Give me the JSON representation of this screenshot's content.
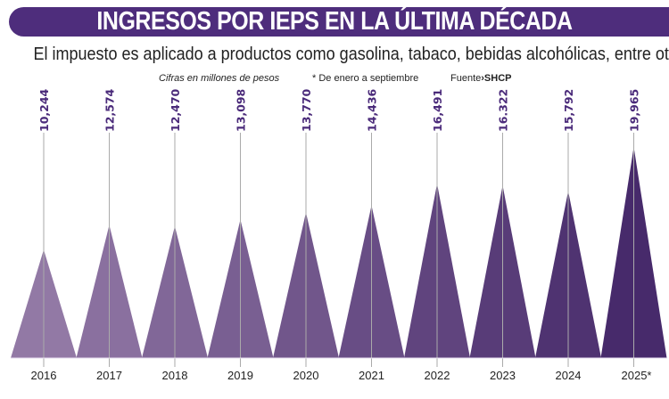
{
  "header": {
    "title": "INGRESOS POR IEPS EN LA ÚLTIMA DÉCADA",
    "subtitle": "El impuesto es aplicado a productos como gasolina, tabaco, bebidas alcohólicas, entre otros."
  },
  "notes": {
    "units": "Cifras en millones de pesos",
    "partial_year": "* De enero a septiembre",
    "source_label": "Fuente",
    "source_arrow": "›",
    "source": "SHCP"
  },
  "colors": {
    "banner": "#4e2d7c",
    "value_label": "#4a2a7a",
    "triangle_light": "#9279a5",
    "triangle_dark": "#472a6b"
  },
  "chart_data": {
    "type": "bar",
    "mark": "triangle",
    "categories": [
      "2016",
      "2017",
      "2018",
      "2019",
      "2020",
      "2021",
      "2022",
      "2023",
      "2024",
      "2025*"
    ],
    "values": [
      10244,
      12574,
      12470,
      13098,
      13770,
      14436,
      16491,
      16322,
      15792,
      19965
    ],
    "value_labels": [
      "10,244",
      "12,574",
      "12,470",
      "13,098",
      "13,770",
      "14,436",
      "16,491",
      "16.322",
      "15,792",
      "19,965"
    ],
    "ylim": [
      0,
      20000
    ],
    "grid": false,
    "xlabel": "",
    "ylabel": ""
  }
}
